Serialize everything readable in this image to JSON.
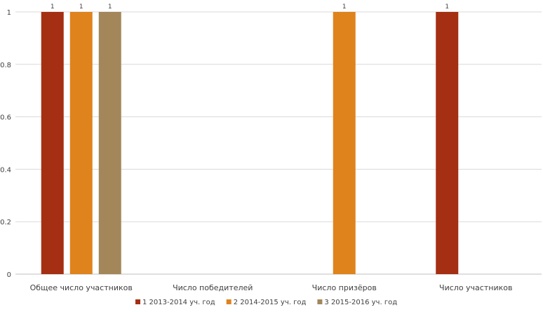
{
  "chart_data": {
    "type": "bar",
    "categories": [
      "Общее число участников",
      "Число победителей",
      "Число призёров",
      "Число участников"
    ],
    "series": [
      {
        "name": "1 2013-2014 уч. год",
        "color": "#a52f12",
        "values": [
          1,
          0,
          0,
          1
        ]
      },
      {
        "name": "2 2014-2015 уч. год",
        "color": "#df831d",
        "values": [
          1,
          0,
          1,
          0
        ]
      },
      {
        "name": "3 2015-2016 уч. год",
        "color": "#a3875a",
        "values": [
          1,
          0,
          0,
          0
        ]
      }
    ],
    "data_labels": [
      {
        "series": 0,
        "category": 0,
        "text": "1"
      },
      {
        "series": 1,
        "category": 0,
        "text": "1"
      },
      {
        "series": 2,
        "category": 0,
        "text": "1"
      },
      {
        "series": 1,
        "category": 2,
        "text": "1"
      },
      {
        "series": 0,
        "category": 3,
        "text": "1"
      }
    ],
    "y_ticks": [
      "0",
      "0.2",
      "0.4",
      "0.6",
      "0.8",
      "1"
    ],
    "ylim": [
      0,
      1
    ],
    "grid": true,
    "legend_position": "bottom",
    "title": "",
    "xlabel": "",
    "ylabel": ""
  }
}
